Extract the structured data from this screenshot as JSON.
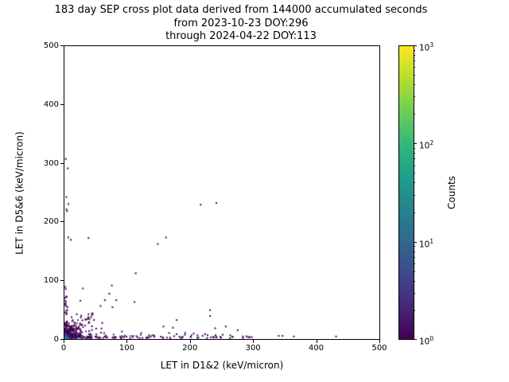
{
  "chart_data": {
    "type": "heatmap",
    "title_lines": [
      "183 day SEP cross plot data derived from 144000 accumulated seconds",
      "from 2023-10-23 DOY:296",
      "through 2024-04-22 DOY:113"
    ],
    "xlabel": "LET in D1&2 (keV/micron)",
    "ylabel": "LET in D5&6 (keV/micron)",
    "xlim": [
      0,
      500
    ],
    "ylim": [
      0,
      500
    ],
    "xticks": [
      0,
      100,
      200,
      300,
      400,
      500
    ],
    "yticks": [
      0,
      100,
      200,
      300,
      400,
      500
    ],
    "grid": false,
    "background_color": "#ffffff",
    "colorbar": {
      "label": "Counts",
      "scale": "log",
      "min_exp": 0,
      "max_exp": 3,
      "tick_base": "10",
      "tick_exponents": [
        0,
        1,
        2,
        3
      ],
      "colormap": "viridis",
      "gradient_stops": [
        "#440154",
        "#482878",
        "#3e4989",
        "#31688e",
        "#26828e",
        "#1f9e89",
        "#35b779",
        "#6ece58",
        "#b5de2b",
        "#fde725"
      ]
    },
    "palette": {
      "count1": "#440154",
      "count2": "#472d7b",
      "count3": "#3b528b"
    },
    "origin_hotspot": {
      "cells": [
        {
          "x": 0,
          "y": 0,
          "w": 3,
          "h": 3,
          "color": "#21918c"
        },
        {
          "x": 3,
          "y": 0,
          "w": 3,
          "h": 3,
          "color": "#26828e"
        },
        {
          "x": 0,
          "y": 3,
          "w": 3,
          "h": 3,
          "color": "#31688e"
        },
        {
          "x": 3,
          "y": 3,
          "w": 3,
          "h": 3,
          "color": "#3e4989"
        },
        {
          "x": 0,
          "y": 6,
          "w": 3,
          "h": 3,
          "color": "#3e4989"
        },
        {
          "x": 6,
          "y": 0,
          "w": 3,
          "h": 3,
          "color": "#3b528b"
        },
        {
          "x": 0,
          "y": 9,
          "w": 3,
          "h": 2,
          "color": "#472d7b"
        },
        {
          "x": 9,
          "y": 0,
          "w": 3,
          "h": 2,
          "color": "#46327e"
        }
      ]
    },
    "sparse_points": [
      [
        1,
        306
      ],
      [
        4,
        290
      ],
      [
        2,
        241
      ],
      [
        5,
        229
      ],
      [
        2,
        220
      ],
      [
        3,
        217
      ],
      [
        5,
        172
      ],
      [
        37,
        171
      ],
      [
        9,
        168
      ],
      [
        160,
        172
      ],
      [
        147,
        161
      ],
      [
        215,
        228
      ],
      [
        240,
        231
      ],
      [
        112,
        111
      ],
      [
        74,
        90
      ],
      [
        28,
        85
      ],
      [
        81,
        65
      ],
      [
        70,
        76
      ],
      [
        63,
        65
      ],
      [
        24,
        64
      ],
      [
        56,
        55
      ],
      [
        75,
        53
      ],
      [
        110,
        62
      ],
      [
        230,
        48
      ],
      [
        230,
        38
      ],
      [
        177,
        31
      ],
      [
        255,
        20
      ],
      [
        171,
        18
      ],
      [
        156,
        20
      ],
      [
        238,
        17
      ],
      [
        274,
        14
      ],
      [
        120,
        6
      ],
      [
        133,
        5
      ],
      [
        190,
        6
      ],
      [
        204,
        8
      ],
      [
        210,
        5
      ],
      [
        222,
        7
      ],
      [
        250,
        6
      ],
      [
        262,
        5
      ],
      [
        282,
        3
      ],
      [
        296,
        2
      ],
      [
        339,
        4
      ],
      [
        345,
        4
      ],
      [
        363,
        3
      ],
      [
        430,
        3
      ]
    ],
    "procedural_cluster": {
      "seed": 42,
      "core": {
        "count": 330,
        "x_mean": 11,
        "y_mean": 8,
        "x_max": 90,
        "y_max": 75
      },
      "diagonal_arm": {
        "count": 26,
        "t_min": 3,
        "t_max": 42,
        "jitter": 3
      },
      "bottom_strip": {
        "count": 130,
        "x_max": 295,
        "x_skew": 1.6,
        "y_mean": 2.2,
        "y_max": 9
      },
      "left_strip": {
        "count": 26,
        "x_mean": 1.2,
        "y_min": 5,
        "y_max": 88
      },
      "second_color_fraction": 0.18
    }
  }
}
